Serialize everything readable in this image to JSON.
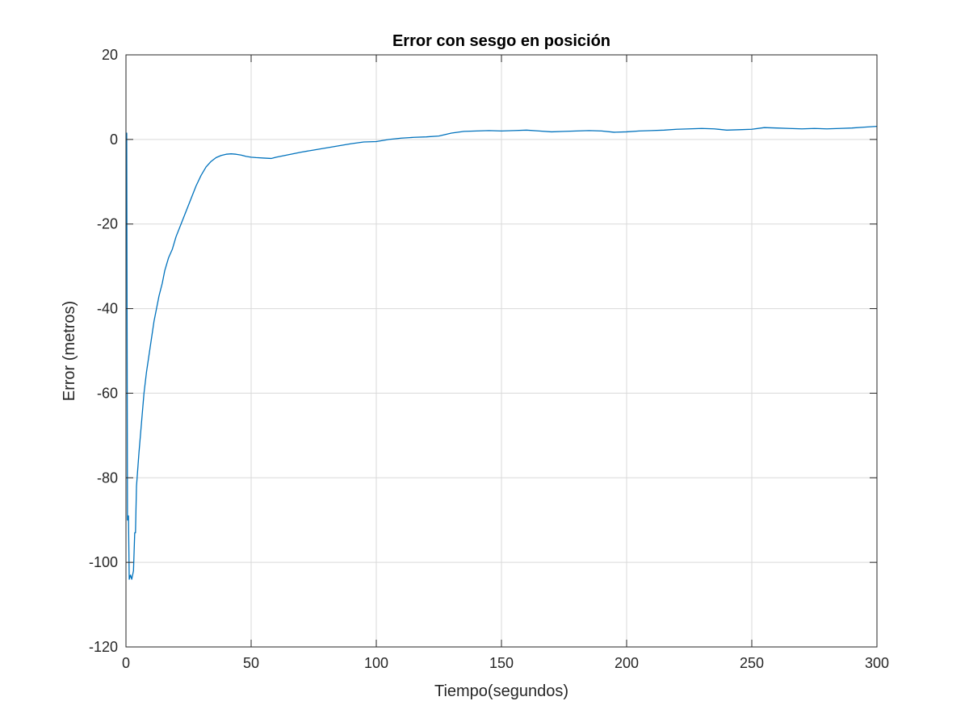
{
  "chart_data": {
    "type": "line",
    "title": "Error con sesgo en posición",
    "xlabel": "Tiempo(segundos)",
    "ylabel": "Error (metros)",
    "xlim": [
      0,
      300
    ],
    "ylim": [
      -120,
      20
    ],
    "x_ticks": [
      0,
      50,
      100,
      150,
      200,
      250,
      300
    ],
    "y_ticks": [
      20,
      0,
      -20,
      -40,
      -60,
      -80,
      -100,
      -120
    ],
    "grid": true,
    "legend": "none",
    "series": [
      {
        "color": "#0072BD",
        "x": [
          0,
          0.3,
          0.6,
          1.0,
          1.3,
          1.8,
          2.3,
          3.0,
          3.5,
          3.8,
          4.2,
          5.2,
          6.2,
          7.2,
          8.2,
          9.2,
          10.2,
          11.2,
          12.2,
          13.2,
          14.5,
          15.5,
          17,
          18.5,
          20,
          22,
          24,
          26,
          28,
          30,
          32,
          34,
          36,
          38,
          40,
          42,
          44,
          46,
          48,
          50,
          52,
          55,
          58,
          60,
          65,
          70,
          75,
          80,
          85,
          90,
          95,
          100,
          105,
          110,
          115,
          120,
          125,
          130,
          135,
          140,
          145,
          150,
          155,
          160,
          165,
          170,
          175,
          180,
          185,
          190,
          195,
          200,
          205,
          210,
          215,
          220,
          225,
          230,
          235,
          240,
          245,
          250,
          255,
          260,
          265,
          270,
          275,
          280,
          285,
          290,
          295,
          300
        ],
        "y": [
          1.5,
          1.5,
          -90,
          -89,
          -104,
          -103,
          -104,
          -102,
          -93,
          -93,
          -82,
          -74,
          -67,
          -60,
          -55,
          -51,
          -47,
          -43,
          -40,
          -37,
          -34,
          -31,
          -28,
          -26,
          -23,
          -20,
          -17,
          -14,
          -11,
          -8.5,
          -6.5,
          -5.2,
          -4.3,
          -3.8,
          -3.5,
          -3.4,
          -3.5,
          -3.7,
          -4.0,
          -4.2,
          -4.3,
          -4.4,
          -4.5,
          -4.2,
          -3.6,
          -3.0,
          -2.5,
          -2.0,
          -1.5,
          -1.0,
          -0.6,
          -0.5,
          0.0,
          0.3,
          0.5,
          0.6,
          0.8,
          1.5,
          1.9,
          2.0,
          2.1,
          2.0,
          2.1,
          2.2,
          2.0,
          1.8,
          1.9,
          2.0,
          2.1,
          2.0,
          1.7,
          1.8,
          2.0,
          2.1,
          2.2,
          2.4,
          2.5,
          2.6,
          2.5,
          2.2,
          2.3,
          2.4,
          2.8,
          2.7,
          2.6,
          2.5,
          2.6,
          2.5,
          2.6,
          2.7,
          2.9,
          3.1
        ]
      }
    ]
  }
}
